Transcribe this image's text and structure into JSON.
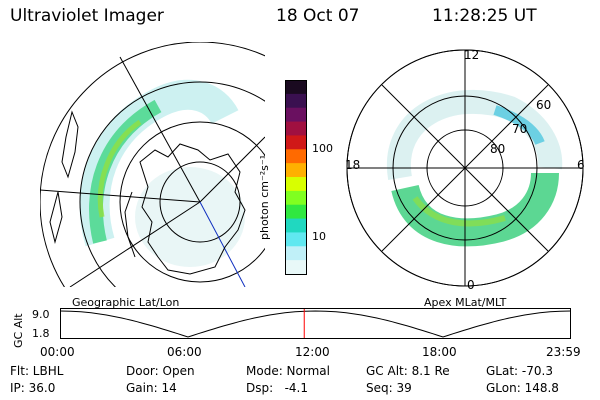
{
  "header": {
    "instrument": "Ultraviolet Imager",
    "date": "18 Oct 07",
    "time": "11:28:25 UT"
  },
  "left_panel": {
    "label": "Geographic Lat/Lon"
  },
  "right_panel": {
    "label": "Apex MLat/MLT",
    "mlt_labels": [
      "12",
      "18",
      "6",
      "0"
    ],
    "lat_labels": [
      "60",
      "70",
      "80"
    ]
  },
  "colorbar": {
    "unit_label": "photon cm⁻²s⁻¹",
    "tick_labels": [
      "100",
      "10"
    ],
    "colors": [
      "#1a0a20",
      "#3a1050",
      "#6a1060",
      "#a01040",
      "#d01818",
      "#ff6a00",
      "#ffb000",
      "#d8ff00",
      "#80ff20",
      "#30e840",
      "#20d8c0",
      "#60e8f0",
      "#c0f0f8",
      "#e8f8f8"
    ]
  },
  "altitude_plot": {
    "ylabel": "GC Alt",
    "y_top": "9.0",
    "y_bottom": "1.8",
    "x_ticks": [
      "00:00",
      "06:00",
      "12:00",
      "18:00",
      "23:59"
    ],
    "marker_hour": 11.47,
    "marker_color": "#ff0000"
  },
  "info": {
    "flt": "Flt: LBHL",
    "door": "Door: Open",
    "mode": "Mode: Normal",
    "gcalt": "GC Alt: 8.1 Re",
    "glat": "GLat: -70.3",
    "ip": "IP: 36.0",
    "gain": "Gain: 14",
    "dsp": "Dsp:   -4.1",
    "seq": "Seq: 39",
    "glon": "GLon: 148.8"
  }
}
